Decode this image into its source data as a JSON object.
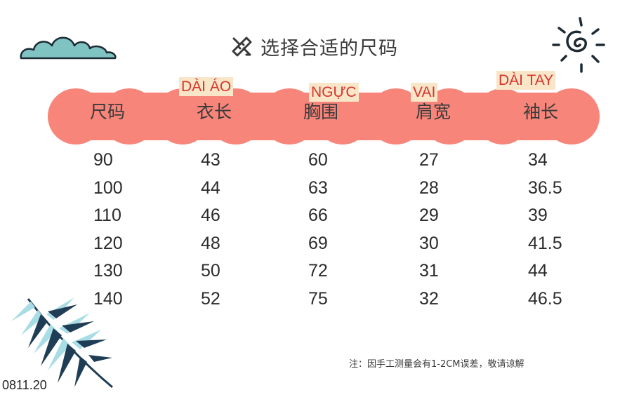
{
  "title": "选择合适的尺码",
  "headers": [
    "尺码",
    "衣长",
    "胸围",
    "肩宽",
    "袖长"
  ],
  "vi_labels": [
    "DÀI ÁO",
    "NGỰC",
    "VAI",
    "DÀI TAY"
  ],
  "rows": [
    [
      "90",
      "43",
      "60",
      "27",
      "34"
    ],
    [
      "100",
      "44",
      "63",
      "28",
      "36.5"
    ],
    [
      "110",
      "46",
      "66",
      "29",
      "39"
    ],
    [
      "120",
      "48",
      "69",
      "30",
      "41.5"
    ],
    [
      "130",
      "50",
      "72",
      "31",
      "44"
    ],
    [
      "140",
      "52",
      "75",
      "32",
      "46.5"
    ]
  ],
  "note": "注：因手工测量会有1-2CM误差，敬请谅解",
  "code": "0811.20",
  "colors": {
    "band": "#f7857a",
    "cloud": "#7fc3c3",
    "label_bg": "#f9e6c8",
    "label_text": "#d9332b",
    "leaf_dark": "#1f3e55",
    "leaf_light": "#a9dde6"
  },
  "icons": [
    "ruler-pencil-icon",
    "cloud-icon",
    "sun-icon",
    "leaf-icon"
  ]
}
